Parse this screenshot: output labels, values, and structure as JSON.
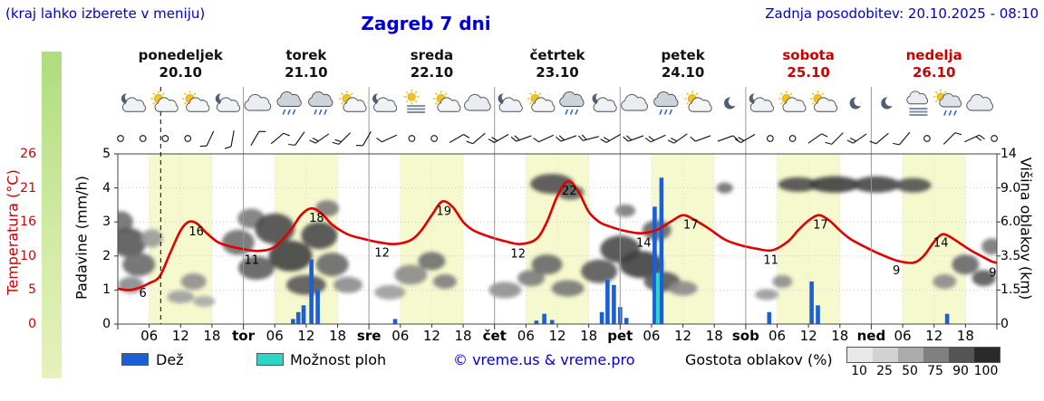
{
  "header": {
    "hint": "(kraj lahko izberete v meniju)",
    "title": "Zagreb 7 dni",
    "updated": "Zadnja posodobitev: 20.10.2025 - 08:10"
  },
  "days": [
    {
      "name": "ponedeljek",
      "date": "20.10",
      "red": false
    },
    {
      "name": "torek",
      "date": "21.10",
      "red": false
    },
    {
      "name": "sreda",
      "date": "22.10",
      "red": false
    },
    {
      "name": "četrtek",
      "date": "23.10",
      "red": false
    },
    {
      "name": "petek",
      "date": "24.10",
      "red": false
    },
    {
      "name": "sobota",
      "date": "25.10",
      "red": true
    },
    {
      "name": "nedelja",
      "date": "26.10",
      "red": true
    }
  ],
  "axes": {
    "temp_label": "Temperatura (°C)",
    "temp_ticks": [
      "26",
      "21",
      "16",
      "10",
      "5",
      "0"
    ],
    "precip_label": "Padavine (mm/h)",
    "precip_ticks": [
      "5",
      "4",
      "3",
      "2",
      "1",
      "0"
    ],
    "cloud_label": "Višina oblakov (km)",
    "cloud_ticks": [
      "14",
      "9.0",
      "6.0",
      "3.5",
      "1.5",
      "0"
    ]
  },
  "xaxis": {
    "hour_labels": [
      "06",
      "12",
      "18"
    ],
    "day_abbrevs": [
      "tor",
      "sre",
      "čet",
      "pet",
      "sob",
      "ned"
    ]
  },
  "legend": {
    "rain": "Dež",
    "showers": "Možnost ploh",
    "copyright": "© vreme.us & vreme.pro",
    "cloud_density": "Gostota oblakov (%)",
    "density_ticks": [
      "10",
      "25",
      "50",
      "75",
      "90",
      "100"
    ],
    "density_colors": [
      "#e8e8e8",
      "#d2d2d2",
      "#ababab",
      "#808080",
      "#555555",
      "#2b2b2b"
    ]
  },
  "colors": {
    "header_blue": "#0000cc",
    "weekend_red": "#cc0000",
    "temperature": "#e00000",
    "rain": "#1a5fd6",
    "shower": "#2fd6c8",
    "day_band": "#f6f8cd"
  },
  "chart_data": {
    "type": "meteogram",
    "hours_total": 168,
    "now_hour": 8.2,
    "precip_axis": [
      0,
      5
    ],
    "temp_axis_values": [
      0,
      5,
      10,
      16,
      21,
      26
    ],
    "cloud_axis_values": [
      0,
      1.5,
      3.5,
      6,
      9,
      14
    ],
    "temperature_series": [
      [
        0,
        5.2
      ],
      [
        2,
        5
      ],
      [
        4,
        5.3
      ],
      [
        6,
        6
      ],
      [
        8,
        7
      ],
      [
        10,
        10.5
      ],
      [
        12,
        14.5
      ],
      [
        13.5,
        16
      ],
      [
        15,
        15.8
      ],
      [
        17,
        14
      ],
      [
        19,
        12.5
      ],
      [
        21,
        11.8
      ],
      [
        24,
        11.2
      ],
      [
        27,
        10.9
      ],
      [
        30,
        11.6
      ],
      [
        33,
        14.5
      ],
      [
        35,
        17
      ],
      [
        37,
        18
      ],
      [
        39,
        17.2
      ],
      [
        41,
        15.5
      ],
      [
        44,
        13.8
      ],
      [
        47,
        13
      ],
      [
        50,
        12.4
      ],
      [
        53,
        12.1
      ],
      [
        56,
        12.8
      ],
      [
        58,
        14.5
      ],
      [
        60,
        17
      ],
      [
        62,
        19
      ],
      [
        64,
        18.2
      ],
      [
        66,
        16
      ],
      [
        68,
        14.5
      ],
      [
        71,
        13.4
      ],
      [
        74,
        12.6
      ],
      [
        77,
        12.1
      ],
      [
        80,
        13
      ],
      [
        82,
        16
      ],
      [
        84,
        19.8
      ],
      [
        86,
        22
      ],
      [
        88,
        20.5
      ],
      [
        90,
        17.5
      ],
      [
        92,
        16
      ],
      [
        94,
        15.2
      ],
      [
        97,
        14.4
      ],
      [
        100,
        14
      ],
      [
        103,
        14.6
      ],
      [
        106,
        16.2
      ],
      [
        108,
        17
      ],
      [
        110,
        16.4
      ],
      [
        113,
        14.8
      ],
      [
        116,
        12.9
      ],
      [
        119,
        11.9
      ],
      [
        122,
        11.3
      ],
      [
        125,
        11
      ],
      [
        128,
        12.5
      ],
      [
        130,
        14.5
      ],
      [
        132,
        16.2
      ],
      [
        134,
        17
      ],
      [
        136,
        16.2
      ],
      [
        138,
        14.5
      ],
      [
        140,
        13
      ],
      [
        143,
        11.5
      ],
      [
        146,
        10.2
      ],
      [
        149,
        9.3
      ],
      [
        152,
        9
      ],
      [
        154,
        10
      ],
      [
        156,
        12.5
      ],
      [
        157.5,
        13.8
      ],
      [
        159,
        13.4
      ],
      [
        161,
        12.2
      ],
      [
        163,
        11
      ],
      [
        165,
        10
      ],
      [
        167,
        9.2
      ],
      [
        168,
        9
      ]
    ],
    "temp_point_labels": [
      [
        "6",
        4.8,
        6
      ],
      [
        "16",
        15,
        16
      ],
      [
        "11",
        25.6,
        11
      ],
      [
        "18",
        38,
        18
      ],
      [
        "12",
        50.5,
        12.3
      ],
      [
        "19",
        62.3,
        19
      ],
      [
        "12",
        76.5,
        12.1
      ],
      [
        "22",
        86.3,
        22
      ],
      [
        "14",
        100.5,
        14
      ],
      [
        "17",
        109.5,
        17
      ],
      [
        "11",
        124.8,
        11
      ],
      [
        "17",
        134.3,
        17
      ],
      [
        "9",
        148.8,
        9.3
      ],
      [
        "14",
        157.3,
        14
      ],
      [
        "9",
        167.2,
        9
      ]
    ],
    "rain_bars": [
      [
        33.5,
        0.15
      ],
      [
        34.5,
        0.35
      ],
      [
        35.5,
        0.55
      ],
      [
        37,
        1.9
      ],
      [
        38.2,
        1.0
      ],
      [
        53,
        0.15
      ],
      [
        80,
        0.1
      ],
      [
        81.5,
        0.3
      ],
      [
        83,
        0.12
      ],
      [
        92.5,
        0.35
      ],
      [
        93.6,
        1.3
      ],
      [
        94.8,
        1.15
      ],
      [
        96,
        0.5
      ],
      [
        97.2,
        0.18
      ],
      [
        102.6,
        3.45
      ],
      [
        103.9,
        4.3
      ],
      [
        124.5,
        0.35
      ],
      [
        132.6,
        1.25
      ],
      [
        133.8,
        0.55
      ],
      [
        158.5,
        0.3
      ]
    ],
    "shower_bars": [
      [
        103.2,
        1.5
      ]
    ],
    "cloud_blobs": [
      [
        0.5,
        6,
        14,
        12,
        "#6e6e6e"
      ],
      [
        2,
        4.5,
        20,
        16,
        "#565656"
      ],
      [
        4,
        3,
        18,
        13,
        "#6a6a6a"
      ],
      [
        2.5,
        1.8,
        14,
        9,
        "#8a8a8a"
      ],
      [
        6.5,
        4.8,
        12,
        10,
        "#9a9a9a"
      ],
      [
        12,
        1.2,
        15,
        7,
        "#9e9e9e"
      ],
      [
        14.5,
        2,
        14,
        9,
        "#8e8e8e"
      ],
      [
        16.5,
        1,
        12,
        6,
        "#a8a8a8"
      ],
      [
        23,
        4.5,
        18,
        14,
        "#707070"
      ],
      [
        25.5,
        6.3,
        15,
        11,
        "#7a7a7a"
      ],
      [
        26.5,
        2.8,
        20,
        13,
        "#5e5e5e"
      ],
      [
        30,
        5.5,
        22,
        17,
        "#4a4a4a"
      ],
      [
        33,
        3.5,
        24,
        17,
        "#404040"
      ],
      [
        36,
        1.8,
        22,
        11,
        "#565656"
      ],
      [
        38.5,
        5,
        20,
        15,
        "#4a4a4a"
      ],
      [
        41,
        3,
        18,
        13,
        "#686868"
      ],
      [
        44,
        1.8,
        16,
        9,
        "#8c8c8c"
      ],
      [
        40,
        7.2,
        13,
        9,
        "#7a7a7a"
      ],
      [
        52,
        1.4,
        17,
        8,
        "#9c9c9c"
      ],
      [
        56,
        2.4,
        18,
        11,
        "#8a8a8a"
      ],
      [
        60,
        3.2,
        15,
        10,
        "#6e6e6e"
      ],
      [
        62.5,
        2,
        13,
        8,
        "#7e7e7e"
      ],
      [
        74,
        1.5,
        18,
        9,
        "#909090"
      ],
      [
        79,
        2.2,
        15,
        9,
        "#7c7c7c"
      ],
      [
        83,
        9.6,
        24,
        11,
        "#505050"
      ],
      [
        86.5,
        8.6,
        15,
        8,
        "#606060"
      ],
      [
        82,
        3,
        17,
        11,
        "#686868"
      ],
      [
        86,
        1.6,
        18,
        9,
        "#787878"
      ],
      [
        92,
        2.6,
        20,
        13,
        "#585858"
      ],
      [
        96,
        4,
        22,
        15,
        "#4a4a4a"
      ],
      [
        100,
        3,
        24,
        15,
        "#404040"
      ],
      [
        104,
        2,
        20,
        11,
        "#565656"
      ],
      [
        103,
        5.4,
        16,
        11,
        "#666666"
      ],
      [
        108,
        1.6,
        16,
        8,
        "#8a8a8a"
      ],
      [
        97,
        7,
        11,
        7,
        "#7a7a7a"
      ],
      [
        116,
        9,
        9,
        6,
        "#707070"
      ],
      [
        124,
        1.3,
        13,
        6,
        "#9a9a9a"
      ],
      [
        127,
        2,
        11,
        7,
        "#8e8e8e"
      ],
      [
        130,
        9.5,
        22,
        8,
        "#4c4c4c"
      ],
      [
        137,
        9.5,
        28,
        9,
        "#3e3e3e"
      ],
      [
        145,
        9.5,
        26,
        9,
        "#464646"
      ],
      [
        152,
        9.4,
        20,
        8,
        "#525252"
      ],
      [
        158,
        2,
        13,
        8,
        "#8a8a8a"
      ],
      [
        162,
        3,
        15,
        11,
        "#666666"
      ],
      [
        165.5,
        2.2,
        13,
        9,
        "#5a5a5a"
      ],
      [
        167,
        4.2,
        11,
        9,
        "#787878"
      ]
    ],
    "wind": [
      {
        "t": "o"
      },
      {
        "t": "o"
      },
      {
        "t": "o"
      },
      {
        "t": "o"
      },
      {
        "t": "b",
        "d": 205,
        "n": 1
      },
      {
        "t": "b",
        "d": 190,
        "n": 1
      },
      {
        "t": "b",
        "d": 30,
        "n": 1
      },
      {
        "t": "b",
        "d": 50,
        "n": 1
      },
      {
        "t": "b",
        "d": 215,
        "n": 1
      },
      {
        "t": "b",
        "d": 235,
        "n": 2
      },
      {
        "t": "b",
        "d": 225,
        "n": 2
      },
      {
        "t": "b",
        "d": 210,
        "n": 1
      },
      {
        "t": "b",
        "d": 245,
        "n": 1
      },
      {
        "t": "o"
      },
      {
        "t": "o"
      },
      {
        "t": "b",
        "d": 60,
        "n": 1
      },
      {
        "t": "b",
        "d": 230,
        "n": 1
      },
      {
        "t": "b",
        "d": 240,
        "n": 2
      },
      {
        "t": "b",
        "d": 250,
        "n": 2
      },
      {
        "t": "b",
        "d": 245,
        "n": 1
      },
      {
        "t": "b",
        "d": 250,
        "n": 2
      },
      {
        "t": "b",
        "d": 255,
        "n": 2
      },
      {
        "t": "b",
        "d": 240,
        "n": 2
      },
      {
        "t": "b",
        "d": 250,
        "n": 2
      },
      {
        "t": "b",
        "d": 245,
        "n": 2
      },
      {
        "t": "b",
        "d": 235,
        "n": 2
      },
      {
        "t": "b",
        "d": 250,
        "n": 1
      },
      {
        "t": "b",
        "d": 70,
        "n": 1
      },
      {
        "t": "b",
        "d": 240,
        "n": 2
      },
      {
        "t": "o"
      },
      {
        "t": "o"
      },
      {
        "t": "b",
        "d": 55,
        "n": 1
      },
      {
        "t": "b",
        "d": 225,
        "n": 1
      },
      {
        "t": "b",
        "d": 235,
        "n": 2
      },
      {
        "t": "b",
        "d": 230,
        "n": 1
      },
      {
        "t": "b",
        "d": 220,
        "n": 1
      },
      {
        "t": "o"
      },
      {
        "t": "b",
        "d": 45,
        "n": 1
      },
      {
        "t": "b",
        "d": 65,
        "n": 2
      },
      {
        "t": "o"
      }
    ],
    "icons": [
      "cloud-moon",
      "sun-cloud",
      "sun-cloud",
      "cloud-moon",
      "cloud",
      "cloud-rain",
      "cloud-rain",
      "sun-cloud",
      "cloud-moon",
      "fog-sun",
      "sun-cloud",
      "cloud",
      "cloud-moon",
      "sun-cloud",
      "cloud-rain",
      "cloud-moon",
      "cloud",
      "cloud-rain",
      "sun-cloud",
      "moon",
      "cloud-moon",
      "sun-cloud",
      "sun-cloud",
      "moon",
      "moon",
      "fog",
      "cloud-rain-sun",
      "cloud"
    ]
  }
}
